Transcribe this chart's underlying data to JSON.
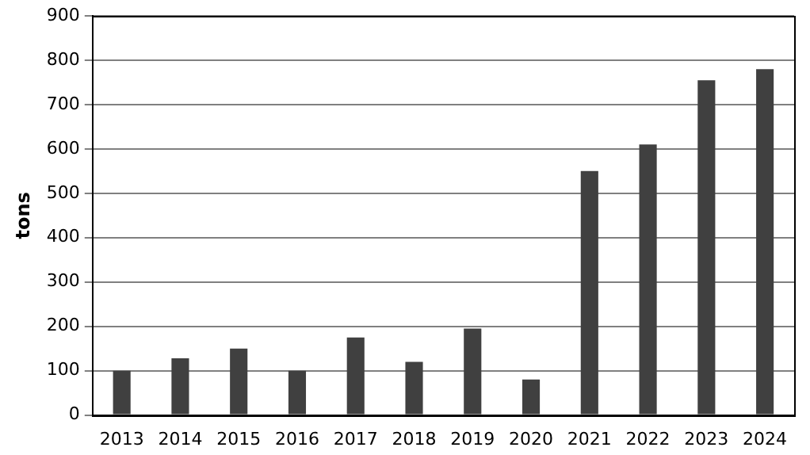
{
  "chart_data": {
    "type": "bar",
    "ylabel": "tons",
    "categories": [
      "2013",
      "2014",
      "2015",
      "2016",
      "2017",
      "2018",
      "2019",
      "2020",
      "2021",
      "2022",
      "2023",
      "2024"
    ],
    "values": [
      100,
      128,
      150,
      100,
      175,
      120,
      195,
      80,
      550,
      610,
      755,
      780
    ],
    "color": "#404040",
    "ylim": [
      0,
      900
    ],
    "yticks": [
      0,
      100,
      200,
      300,
      400,
      500,
      600,
      700,
      800,
      900
    ],
    "grid": "y",
    "legend": false
  }
}
